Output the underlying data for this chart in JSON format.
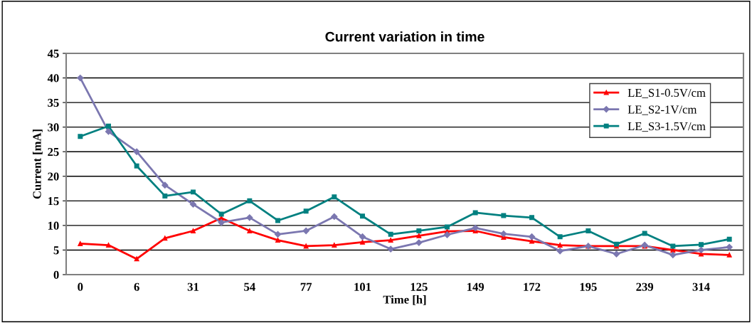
{
  "chart_data": {
    "type": "line",
    "title": "Current variation in time",
    "xlabel": "Time [h]",
    "ylabel": "Current [mA]",
    "categories": [
      "0",
      null,
      "6",
      null,
      "31",
      null,
      "54",
      null,
      "77",
      null,
      "101",
      null,
      "125",
      null,
      "149",
      null,
      "172",
      null,
      "195",
      null,
      "239",
      null,
      "314",
      null
    ],
    "series": [
      {
        "name": "LE_S1-0.5V/cm",
        "color": "#ff0000",
        "marker": "triangle",
        "values": [
          6.3,
          6.0,
          3.2,
          7.4,
          8.9,
          11.5,
          8.9,
          7.0,
          5.8,
          6.0,
          6.6,
          7.0,
          7.9,
          8.8,
          8.9,
          7.6,
          6.8,
          6.0,
          5.8,
          5.8,
          5.8,
          5.0,
          4.2,
          4.0
        ]
      },
      {
        "name": "LE_S2-1V/cm",
        "color": "#7b77b0",
        "marker": "diamond",
        "values": [
          40,
          29.1,
          25.0,
          18.2,
          14.3,
          10.6,
          11.6,
          8.2,
          8.9,
          11.8,
          7.7,
          5.2,
          6.5,
          8.1,
          9.5,
          8.3,
          7.7,
          4.8,
          5.8,
          4.2,
          6.0,
          4.0,
          5.0,
          5.6
        ]
      },
      {
        "name": "LE_S3-1.5V/cm",
        "color": "#008080",
        "marker": "square",
        "values": [
          28.1,
          30.2,
          22.1,
          16.0,
          16.8,
          12.3,
          15.0,
          11.0,
          12.9,
          15.8,
          11.9,
          8.2,
          8.9,
          9.7,
          12.6,
          12.0,
          11.6,
          7.7,
          8.9,
          6.2,
          8.4,
          5.8,
          6.1,
          7.2
        ]
      }
    ],
    "ylim": [
      0,
      45
    ],
    "yticks": [
      0,
      5,
      10,
      15,
      20,
      25,
      30,
      35,
      40,
      45
    ],
    "grid": "y",
    "legend": "top right",
    "line_style": "solid"
  }
}
